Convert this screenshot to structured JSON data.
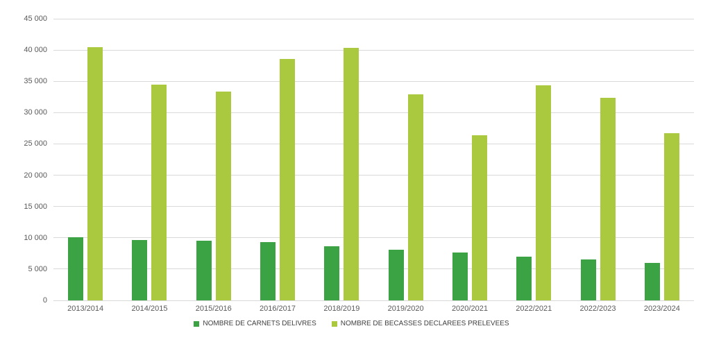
{
  "chart_data": {
    "type": "bar",
    "title": "",
    "xlabel": "",
    "ylabel": "",
    "categories": [
      "2013/2014",
      "2014/2015",
      "2015/2016",
      "2016/2017",
      "2018/2019",
      "2019/2020",
      "2020/2021",
      "2022/2021",
      "2022/2023",
      "2023/2024"
    ],
    "series": [
      {
        "name": "NOMBRE DE CARNETS DELIVRES",
        "color": "#3ca345",
        "values": [
          10100,
          9700,
          9500,
          9300,
          8600,
          8100,
          7600,
          7000,
          6500,
          6000
        ]
      },
      {
        "name": "NOMBRE DE BECASSES DECLAREES PRELEVEES",
        "color": "#abc93f",
        "values": [
          40500,
          34500,
          33400,
          38600,
          40400,
          32900,
          26400,
          34400,
          32400,
          26700
        ]
      }
    ],
    "ylim": [
      0,
      45000
    ],
    "ytick_step": 5000,
    "ytick_labels": [
      "0",
      "5 000",
      "10 000",
      "15 000",
      "20 000",
      "25 000",
      "30 000",
      "35 000",
      "40 000",
      "45 000"
    ],
    "grid": true,
    "legend_position": "bottom"
  },
  "colors": {
    "grid": "#d9d9d9",
    "axis_text": "#595959",
    "legend_text": "#404040",
    "background": "#ffffff"
  }
}
